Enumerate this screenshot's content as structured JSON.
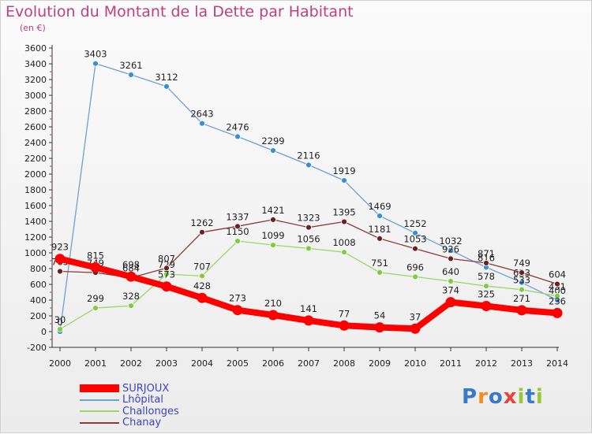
{
  "title": "Evolution du Montant de la Dette par Habitant",
  "unit": "(en €)",
  "logo": {
    "text": "Proxiti",
    "colors": [
      "#3a78c9",
      "#f28c1a",
      "#3a78c9",
      "#e8423b",
      "#9bc43a",
      "#3a78c9",
      "#9bc43a"
    ]
  },
  "chart_data": {
    "type": "line",
    "categories": [
      "2000",
      "2001",
      "2002",
      "2003",
      "2004",
      "2005",
      "2006",
      "2007",
      "2008",
      "2009",
      "2010",
      "2011",
      "2012",
      "2013",
      "2014"
    ],
    "ylim": [
      -200,
      3600
    ],
    "yticks": [
      -200,
      0,
      200,
      400,
      600,
      800,
      1000,
      1200,
      1400,
      1600,
      1800,
      2000,
      2200,
      2400,
      2600,
      2800,
      3000,
      3200,
      3400,
      3600
    ],
    "grid": false,
    "legend_position": "bottom-left",
    "series": [
      {
        "name": "Lhôpital",
        "color": "#6ca0d8",
        "marker": "#3a8fd0",
        "width": 1.3,
        "radius": 3.5,
        "values": [
          0,
          3403,
          3261,
          3112,
          2643,
          2476,
          2299,
          2116,
          1919,
          1469,
          1252,
          1032,
          816,
          623,
          400
        ],
        "labels": [
          "0",
          "3403",
          "3261",
          "3112",
          "2643",
          "2476",
          "2299",
          "2116",
          "1919",
          "1469",
          "1252",
          "1032",
          "816",
          "623",
          "400"
        ]
      },
      {
        "name": "Challonges",
        "color": "#9bd66b",
        "marker": "#7fcc40",
        "width": 1.3,
        "radius": 3.5,
        "values": [
          30,
          299,
          328,
          729,
          707,
          1150,
          1099,
          1056,
          1008,
          751,
          696,
          640,
          578,
          533,
          451
        ],
        "labels": [
          "30",
          "299",
          "328",
          "729",
          "707",
          "1150",
          "1099",
          "1056",
          "1008",
          "751",
          "696",
          "640",
          "578",
          "533",
          "451"
        ]
      },
      {
        "name": "Chanay",
        "color": "#8b3a3a",
        "marker": "#6e2020",
        "width": 1.3,
        "radius": 3.5,
        "values": [
          765,
          749,
          684,
          807,
          1262,
          1337,
          1421,
          1323,
          1395,
          1181,
          1053,
          926,
          871,
          749,
          604
        ],
        "labels": [
          "765",
          "749",
          "684",
          "807",
          "1262",
          "1337",
          "1421",
          "1323",
          "1395",
          "1181",
          "1053",
          "926",
          "871",
          "749",
          "604"
        ]
      },
      {
        "name": "SURJOUX",
        "color": "#ff0000",
        "marker": "#ff0000",
        "width": 8,
        "radius": 6.5,
        "values": [
          923,
          815,
          698,
          573,
          428,
          273,
          210,
          141,
          77,
          54,
          37,
          374,
          325,
          271,
          236
        ],
        "labels": [
          "923",
          "815",
          "698",
          "573",
          "428",
          "273",
          "210",
          "141",
          "77",
          "54",
          "37",
          "374",
          "325",
          "271",
          "236"
        ]
      }
    ]
  }
}
